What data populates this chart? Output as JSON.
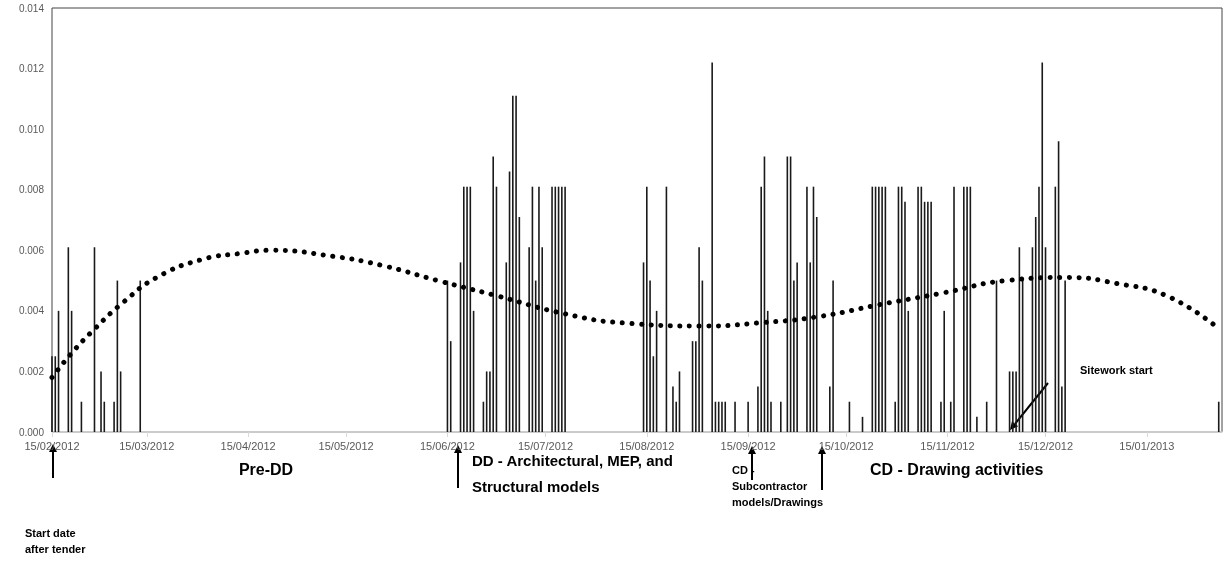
{
  "chart_data": {
    "type": "bar",
    "xlim": [
      "2012-02-15",
      "2013-02-07"
    ],
    "xticks": [
      {
        "value": "2012-02-15",
        "label": "15/02/2012"
      },
      {
        "value": "2012-03-15",
        "label": "15/03/2012"
      },
      {
        "value": "2012-04-15",
        "label": "15/04/2012"
      },
      {
        "value": "2012-05-15",
        "label": "15/05/2012"
      },
      {
        "value": "2012-06-15",
        "label": "15/06/2012"
      },
      {
        "value": "2012-07-15",
        "label": "15/07/2012"
      },
      {
        "value": "2012-08-15",
        "label": "15/08/2012"
      },
      {
        "value": "2012-09-15",
        "label": "15/09/2012"
      },
      {
        "value": "2012-10-15",
        "label": "15/10/2012"
      },
      {
        "value": "2012-11-15",
        "label": "15/11/2012"
      },
      {
        "value": "2012-12-15",
        "label": "15/12/2012"
      },
      {
        "value": "2013-01-15",
        "label": "15/01/2013"
      }
    ],
    "ylim": [
      0,
      0.014
    ],
    "yticks": [
      {
        "value": 0,
        "label": "0.000"
      },
      {
        "value": 0.002,
        "label": "0.002"
      },
      {
        "value": 0.004,
        "label": "0.004"
      },
      {
        "value": 0.006,
        "label": "0.006"
      },
      {
        "value": 0.008,
        "label": "0.008"
      },
      {
        "value": 0.01,
        "label": "0.010"
      },
      {
        "value": 0.012,
        "label": "0.012"
      },
      {
        "value": 0.014,
        "label": "0.014"
      }
    ],
    "grid": false,
    "series": [
      {
        "color": "#1a1a1a",
        "x": [
          "2012-02-15",
          "2012-02-16",
          "2012-02-17",
          "2012-02-20",
          "2012-02-21",
          "2012-02-24",
          "2012-02-28",
          "2012-03-01",
          "2012-03-02",
          "2012-03-05",
          "2012-03-06",
          "2012-03-07",
          "2012-03-13",
          "2012-06-15",
          "2012-06-16",
          "2012-06-19",
          "2012-06-20",
          "2012-06-21",
          "2012-06-22",
          "2012-06-23",
          "2012-06-26",
          "2012-06-27",
          "2012-06-28",
          "2012-06-29",
          "2012-06-30",
          "2012-07-03",
          "2012-07-04",
          "2012-07-05",
          "2012-07-06",
          "2012-07-07",
          "2012-07-10",
          "2012-07-11",
          "2012-07-12",
          "2012-07-13",
          "2012-07-14",
          "2012-07-17",
          "2012-07-18",
          "2012-07-19",
          "2012-07-20",
          "2012-07-21",
          "2012-08-14",
          "2012-08-15",
          "2012-08-16",
          "2012-08-17",
          "2012-08-18",
          "2012-08-21",
          "2012-08-23",
          "2012-08-24",
          "2012-08-25",
          "2012-08-29",
          "2012-08-30",
          "2012-08-31",
          "2012-09-01",
          "2012-09-04",
          "2012-09-05",
          "2012-09-06",
          "2012-09-07",
          "2012-09-08",
          "2012-09-11",
          "2012-09-15",
          "2012-09-18",
          "2012-09-19",
          "2012-09-20",
          "2012-09-21",
          "2012-09-22",
          "2012-09-25",
          "2012-09-27",
          "2012-09-28",
          "2012-09-29",
          "2012-09-30",
          "2012-10-03",
          "2012-10-04",
          "2012-10-05",
          "2012-10-06",
          "2012-10-10",
          "2012-10-11",
          "2012-10-16",
          "2012-10-20",
          "2012-10-23",
          "2012-10-24",
          "2012-10-25",
          "2012-10-26",
          "2012-10-27",
          "2012-10-30",
          "2012-10-31",
          "2012-11-01",
          "2012-11-02",
          "2012-11-03",
          "2012-11-06",
          "2012-11-07",
          "2012-11-08",
          "2012-11-09",
          "2012-11-10",
          "2012-11-13",
          "2012-11-14",
          "2012-11-16",
          "2012-11-17",
          "2012-11-20",
          "2012-11-21",
          "2012-11-22",
          "2012-11-24",
          "2012-11-27",
          "2012-11-30",
          "2012-12-04",
          "2012-12-05",
          "2012-12-06",
          "2012-12-07",
          "2012-12-08",
          "2012-12-11",
          "2012-12-12",
          "2012-12-13",
          "2012-12-14",
          "2012-12-15",
          "2012-12-18",
          "2012-12-19",
          "2012-12-20",
          "2012-12-21",
          "2013-02-06"
        ],
        "values": [
          0.0025,
          0.0025,
          0.004,
          0.0061,
          0.004,
          0.001,
          0.0061,
          0.002,
          0.001,
          0.001,
          0.005,
          0.002,
          0.005,
          0.005,
          0.003,
          0.0056,
          0.0081,
          0.0081,
          0.0081,
          0.004,
          0.001,
          0.002,
          0.002,
          0.0091,
          0.0081,
          0.0056,
          0.0086,
          0.0111,
          0.0111,
          0.0071,
          0.0061,
          0.0081,
          0.005,
          0.0081,
          0.0061,
          0.0081,
          0.0081,
          0.0081,
          0.0081,
          0.0081,
          0.0056,
          0.0081,
          0.005,
          0.0025,
          0.004,
          0.0081,
          0.0015,
          0.001,
          0.002,
          0.003,
          0.003,
          0.0061,
          0.005,
          0.0122,
          0.001,
          0.001,
          0.001,
          0.001,
          0.001,
          0.001,
          0.0015,
          0.0081,
          0.0091,
          0.004,
          0.001,
          0.001,
          0.0091,
          0.0091,
          0.005,
          0.0056,
          0.0081,
          0.0056,
          0.0081,
          0.0071,
          0.0015,
          0.005,
          0.001,
          0.0005,
          0.0081,
          0.0081,
          0.0081,
          0.0081,
          0.0081,
          0.001,
          0.0081,
          0.0081,
          0.0076,
          0.004,
          0.0081,
          0.0081,
          0.0076,
          0.0076,
          0.0076,
          0.001,
          0.004,
          0.001,
          0.0081,
          0.0081,
          0.0081,
          0.0081,
          0.0005,
          0.001,
          0.005,
          0.002,
          0.002,
          0.002,
          0.0061,
          0.005,
          0.0061,
          0.0071,
          0.0081,
          0.0122,
          0.0061,
          0.0081,
          0.0096,
          0.0015,
          0.005,
          0.001
        ]
      },
      {
        "type": "line",
        "color": "#000000",
        "line_style": "dotted",
        "x": [
          "2012-02-15",
          "2012-02-21",
          "2012-02-28",
          "2012-03-08",
          "2012-03-18",
          "2012-04-01",
          "2012-04-13",
          "2012-04-22",
          "2012-05-11",
          "2012-05-26",
          "2012-06-12",
          "2012-06-30",
          "2012-07-21",
          "2012-08-08",
          "2012-09-02",
          "2012-09-18",
          "2012-10-06",
          "2012-10-25",
          "2012-11-14",
          "2012-12-03",
          "2012-12-22",
          "2013-01-06",
          "2013-01-21",
          "2013-02-05"
        ],
        "values": [
          0.0018,
          0.0026,
          0.0034,
          0.0043,
          0.0051,
          0.0057,
          0.0059,
          0.006,
          0.0058,
          0.0055,
          0.005,
          0.0045,
          0.0039,
          0.0036,
          0.0035,
          0.0036,
          0.0038,
          0.0042,
          0.0046,
          0.005,
          0.0051,
          0.0049,
          0.0045,
          0.0035
        ]
      }
    ],
    "annotations": [
      "Start date after tender",
      "Pre-DD",
      "DD - Architectural, MEP, and Structural models",
      "CD - Subcontractor models/Drawings",
      "CD - Drawing activities",
      "Sitework start"
    ]
  }
}
